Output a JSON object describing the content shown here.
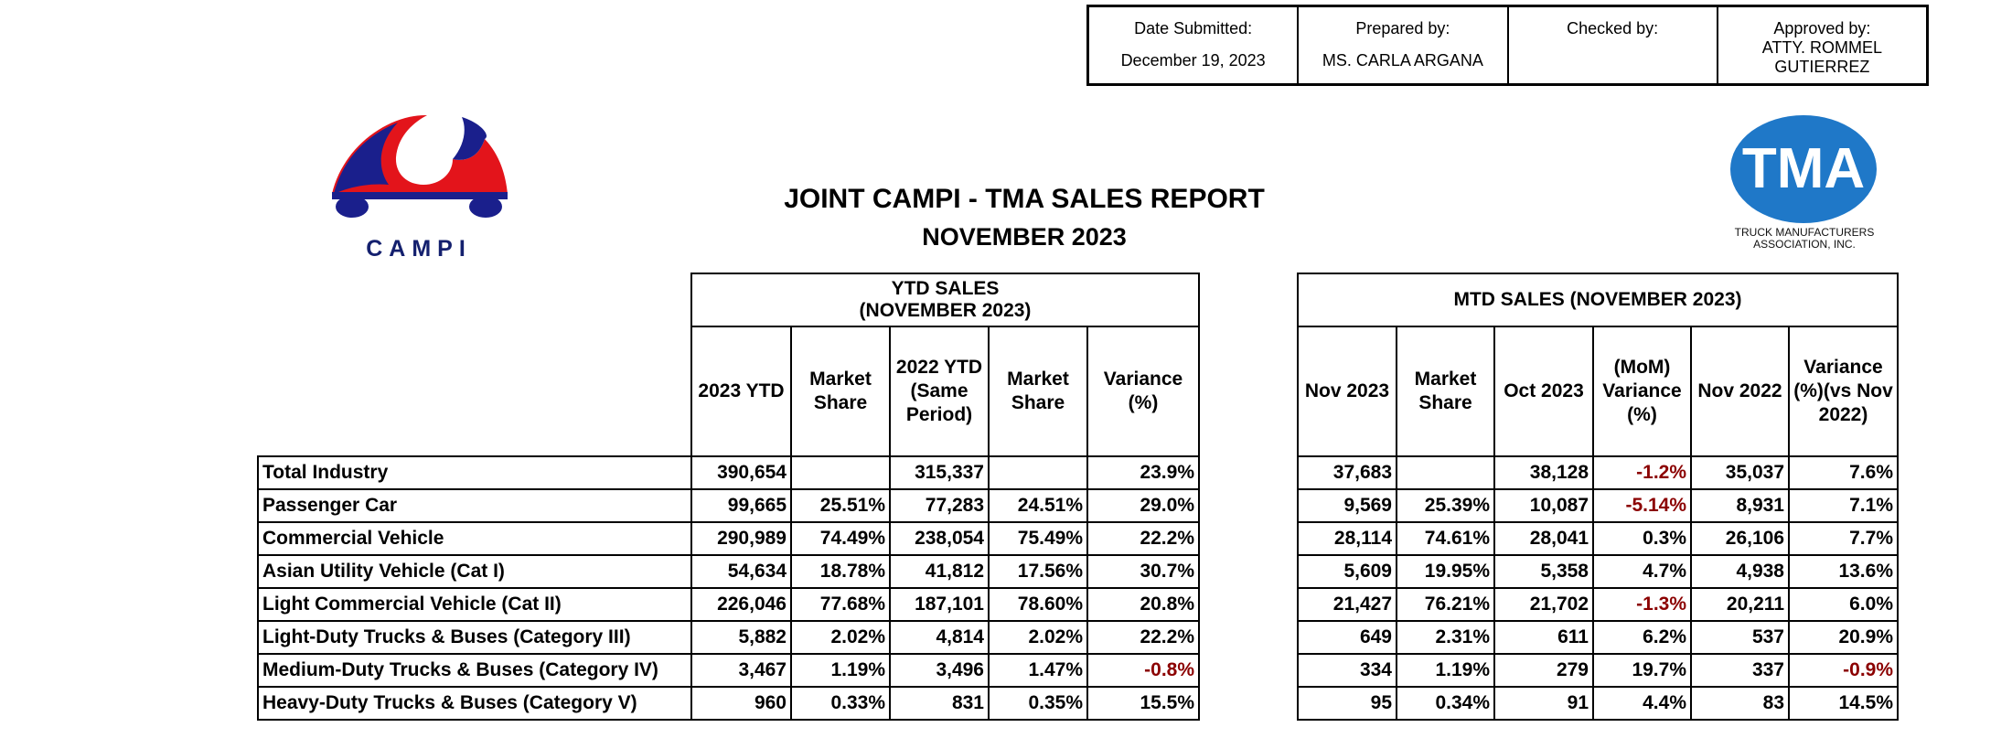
{
  "approval": [
    {
      "label": "Date Submitted:",
      "value": "December 19, 2023"
    },
    {
      "label": "Prepared by:",
      "value": "MS. CARLA ARGANA"
    },
    {
      "label": "Checked by:",
      "value": ""
    },
    {
      "label": "Approved by:",
      "value": "ATTY. ROMMEL GUTIERREZ"
    }
  ],
  "logos": {
    "campi_text": "CAMPI",
    "tma_text": "TMA",
    "tma_line1": "TRUCK MANUFACTURERS",
    "tma_line2": "ASSOCIATION, INC."
  },
  "report": {
    "title": "JOINT CAMPI - TMA SALES REPORT",
    "subtitle": "NOVEMBER 2023"
  },
  "ytd": {
    "group_line1": "YTD SALES",
    "group_line2": "(NOVEMBER 2023)",
    "headers": [
      "2023 YTD",
      "Market Share",
      "2022 YTD (Same Period)",
      "Market Share",
      "Variance (%)"
    ]
  },
  "mtd": {
    "group": "MTD SALES (NOVEMBER 2023)",
    "headers": [
      "Nov 2023",
      "Market Share",
      "Oct 2023",
      "(MoM) Variance (%)",
      "Nov 2022",
      "Variance (%)(vs Nov 2022)"
    ]
  },
  "rows": [
    {
      "category": "Total Industry",
      "ytd": [
        "390,654",
        "",
        "315,337",
        "",
        "23.9%"
      ],
      "mtd": [
        "37,683",
        "",
        "38,128",
        "-1.2%",
        "35,037",
        "7.6%"
      ]
    },
    {
      "category": "Passenger Car",
      "ytd": [
        "99,665",
        "25.51%",
        "77,283",
        "24.51%",
        "29.0%"
      ],
      "mtd": [
        "9,569",
        "25.39%",
        "10,087",
        "-5.14%",
        "8,931",
        "7.1%"
      ]
    },
    {
      "category": "Commercial Vehicle",
      "ytd": [
        "290,989",
        "74.49%",
        "238,054",
        "75.49%",
        "22.2%"
      ],
      "mtd": [
        "28,114",
        "74.61%",
        "28,041",
        "0.3%",
        "26,106",
        "7.7%"
      ]
    },
    {
      "category": "Asian Utility Vehicle (Cat I)",
      "ytd": [
        "54,634",
        "18.78%",
        "41,812",
        "17.56%",
        "30.7%"
      ],
      "mtd": [
        "5,609",
        "19.95%",
        "5,358",
        "4.7%",
        "4,938",
        "13.6%"
      ]
    },
    {
      "category": "Light Commercial Vehicle (Cat II)",
      "ytd": [
        "226,046",
        "77.68%",
        "187,101",
        "78.60%",
        "20.8%"
      ],
      "mtd": [
        "21,427",
        "76.21%",
        "21,702",
        "-1.3%",
        "20,211",
        "6.0%"
      ]
    },
    {
      "category": "Light-Duty Trucks & Buses (Category III)",
      "ytd": [
        "5,882",
        "2.02%",
        "4,814",
        "2.02%",
        "22.2%"
      ],
      "mtd": [
        "649",
        "2.31%",
        "611",
        "6.2%",
        "537",
        "20.9%"
      ]
    },
    {
      "category": "Medium-Duty Trucks & Buses (Category IV)",
      "ytd": [
        "3,467",
        "1.19%",
        "3,496",
        "1.47%",
        "-0.8%"
      ],
      "mtd": [
        "334",
        "1.19%",
        "279",
        "19.7%",
        "337",
        "-0.9%"
      ]
    },
    {
      "category": "Heavy-Duty Trucks & Buses (Category V)",
      "ytd": [
        "960",
        "0.33%",
        "831",
        "0.35%",
        "15.5%"
      ],
      "mtd": [
        "95",
        "0.34%",
        "91",
        "4.4%",
        "83",
        "14.5%"
      ]
    }
  ],
  "colors": {
    "negative": "#8b0000",
    "campi_red": "#e3141b",
    "campi_blue": "#1a1f8c",
    "tma_blue": "#1f78c8"
  }
}
